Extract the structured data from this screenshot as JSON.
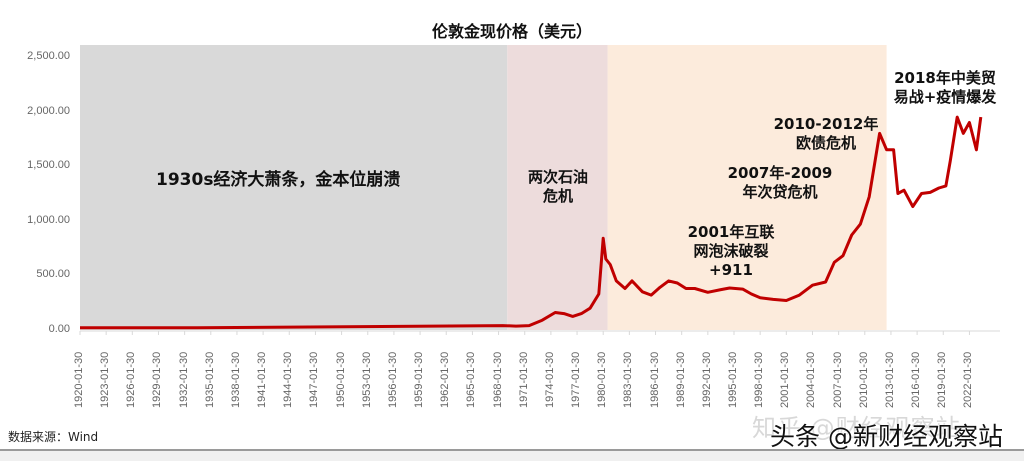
{
  "chart_data": {
    "type": "line",
    "title": "伦敦金现价格（美元）",
    "xlabel": "",
    "ylabel": "",
    "ylim": [
      0,
      2500
    ],
    "yticks": [
      "0.00",
      "500.00",
      "1,000.00",
      "1,500.00",
      "2,000.00",
      "2,500.00"
    ],
    "xticks": [
      "1920-01-30",
      "1923-01-30",
      "1926-01-30",
      "1929-01-30",
      "1932-01-30",
      "1935-01-30",
      "1938-01-30",
      "1941-01-30",
      "1944-01-30",
      "1947-01-30",
      "1950-01-30",
      "1953-01-30",
      "1956-01-30",
      "1959-01-30",
      "1962-01-30",
      "1965-01-30",
      "1968-01-30",
      "1971-01-30",
      "1974-01-30",
      "1977-01-30",
      "1980-01-30",
      "1983-01-30",
      "1986-01-30",
      "1989-01-30",
      "1992-01-30",
      "1995-01-30",
      "1998-01-30",
      "2001-01-30",
      "2004-01-30",
      "2007-01-30",
      "2010-01-30",
      "2013-01-30",
      "2016-01-30",
      "2019-01-30",
      "2022-01-30"
    ],
    "grid": false,
    "legend": "none",
    "series": [
      {
        "name": "伦敦金现价格",
        "color": "#c00000",
        "x": [
          1920,
          1925,
          1930,
          1933.5,
          1968.5,
          1970,
          1971.5,
          1973,
          1974.5,
          1975.5,
          1976.5,
          1977.5,
          1978.5,
          1979.5,
          1980.0,
          1980.3,
          1980.8,
          1981.5,
          1982.5,
          1983.3,
          1984.5,
          1985.5,
          1986.5,
          1987.5,
          1988.5,
          1989.5,
          1990.5,
          1992,
          1993.5,
          1994.5,
          1996,
          1997,
          1998,
          1999.5,
          2001,
          2002.5,
          2004,
          2005.5,
          2006.5,
          2007.5,
          2008.5,
          2009.5,
          2010.5,
          2011.7,
          2012.5,
          2013.3,
          2013.8,
          2014.5,
          2015.5,
          2016.5,
          2017.5,
          2018.5,
          2019.3,
          2019.8,
          2020.6,
          2021.3,
          2022.0,
          2022.8,
          2023.3
        ],
        "values": [
          20,
          20,
          20,
          20,
          40,
          36,
          40,
          90,
          160,
          150,
          125,
          150,
          200,
          330,
          840,
          650,
          600,
          450,
          380,
          450,
          350,
          320,
          390,
          450,
          430,
          380,
          380,
          345,
          370,
          385,
          375,
          330,
          295,
          280,
          270,
          320,
          410,
          440,
          620,
          680,
          870,
          970,
          1220,
          1800,
          1650,
          1650,
          1250,
          1280,
          1130,
          1250,
          1260,
          1300,
          1320,
          1550,
          1950,
          1800,
          1900,
          1650,
          1950
        ]
      }
    ],
    "bands": [
      {
        "from": "1920",
        "to": "1969",
        "color": "#d9d9d9",
        "label": "1930s经济大萧条，金本位崩溃"
      },
      {
        "from": "1969",
        "to": "1980.5",
        "color": "#eddcdc",
        "label": "两次石油危机"
      },
      {
        "from": "1980.5",
        "to": "2012.5",
        "color": "#fcebdc",
        "label": ""
      }
    ],
    "annotations": [
      "1930s经济大萧条，金本位崩溃",
      "两次石油危机",
      "2001年互联网泡沫破裂+911",
      "2007年-2009年次贷危机",
      "2010-2012年欧债危机",
      "2018年中美贸易战+疫情爆发"
    ]
  },
  "header": {
    "title": "伦敦金现价格（美元）"
  },
  "annotations": {
    "depression": "1930s经济大萧条，金本位崩溃",
    "oil_line1": "两次石油",
    "oil_line2": "危机",
    "dotcom_line1": "2001年互联",
    "dotcom_line2": "网泡沫破裂",
    "dotcom_line3": "+911",
    "subprime_line1": "2007年-2009",
    "subprime_line2": "年次贷危机",
    "euro_line1": "2010-2012年",
    "euro_line2": "欧债危机",
    "trade_line1": "2018年中美贸",
    "trade_line2": "易战+疫情爆发"
  },
  "footer": {
    "source": "数据来源：Wind",
    "watermark_zhihu": "知乎 @财经观察站",
    "watermark_toutiao": "头条 @新财经观察站"
  }
}
